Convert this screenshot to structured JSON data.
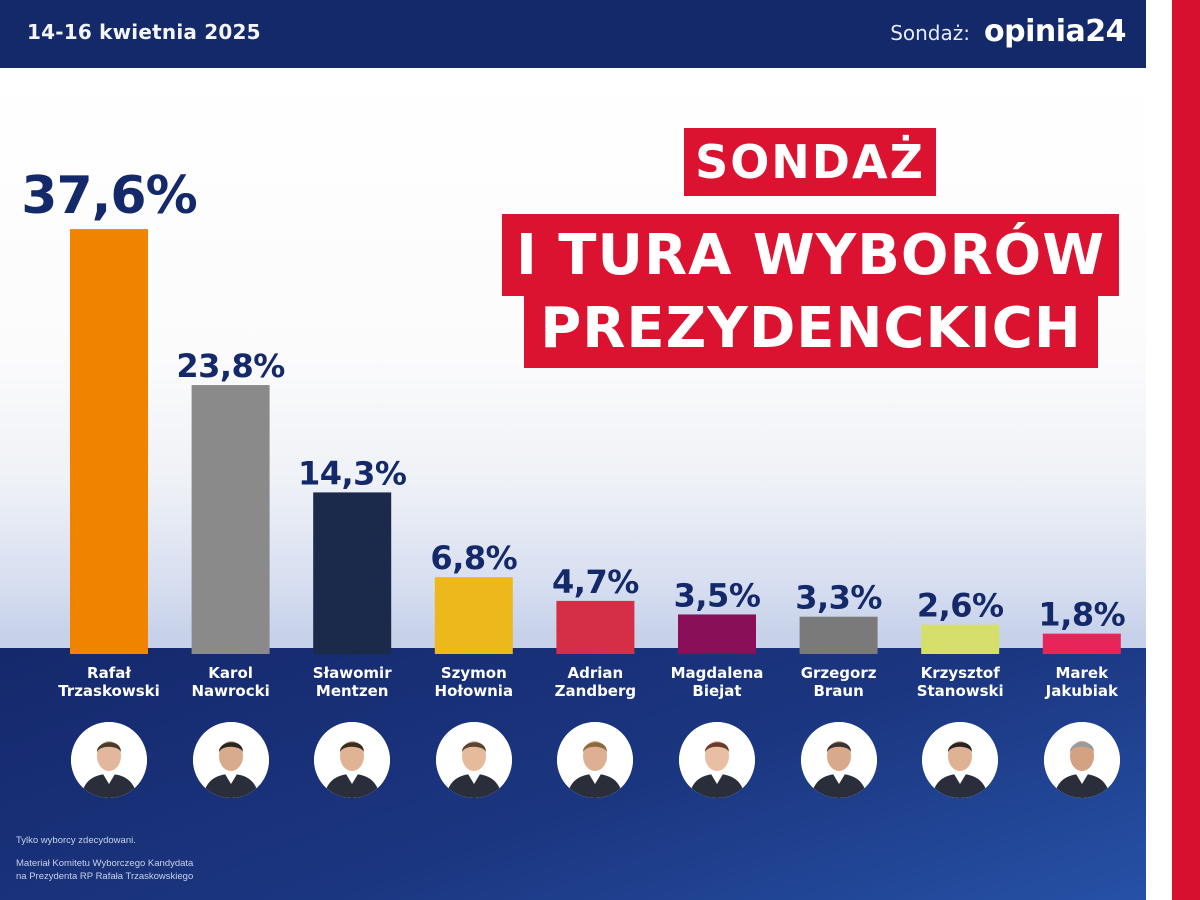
{
  "header": {
    "date": "14-16 kwietnia 2025",
    "source_label": "Sondaż:",
    "logo_text": "opinia24"
  },
  "title": {
    "line1": "SONDAŻ",
    "line2": "I TURA WYBORÓW",
    "line3": "PREZYDENCKICH"
  },
  "footnotes": {
    "note1": "Tylko wyborcy zdecydowani.",
    "note2_line1": "Materiał Komitetu Wyborczego Kandydata",
    "note2_line2": "na Prezydenta RP Rafała Trzaskowskiego"
  },
  "candidates": [
    {
      "first": "Rafał",
      "last": "Trzaskowski"
    },
    {
      "first": "Karol",
      "last": "Nawrocki"
    },
    {
      "first": "Sławomir",
      "last": "Mentzen"
    },
    {
      "first": "Szymon",
      "last": "Hołownia"
    },
    {
      "first": "Adrian",
      "last": "Zandberg"
    },
    {
      "first": "Magdalena",
      "last": "Biejat"
    },
    {
      "first": "Grzegorz",
      "last": "Braun"
    },
    {
      "first": "Krzysztof",
      "last": "Stanowski"
    },
    {
      "first": "Marek",
      "last": "Jakubiak"
    }
  ],
  "colors": {
    "header_bg": "#13296a",
    "title_red": "#db1330",
    "label_navy": "#13296a"
  },
  "chart_data": {
    "type": "bar",
    "categories": [
      "Rafał Trzaskowski",
      "Karol Nawrocki",
      "Sławomir Mentzen",
      "Szymon Hołownia",
      "Adrian Zandberg",
      "Magdalena Biejat",
      "Grzegorz Braun",
      "Krzysztof Stanowski",
      "Marek Jakubiak"
    ],
    "values": [
      37.6,
      23.8,
      14.3,
      6.8,
      4.7,
      3.5,
      3.3,
      2.6,
      1.8
    ],
    "value_labels": [
      "37,6%",
      "23,8%",
      "14,3%",
      "6,8%",
      "4,7%",
      "3,5%",
      "3,3%",
      "2,6%",
      "1,8%"
    ],
    "colors": [
      "#f08400",
      "#8a8a8a",
      "#1b2a4a",
      "#ecb81c",
      "#d42f46",
      "#8a0f59",
      "#7a7a7a",
      "#d6de6c",
      "#e7255a"
    ],
    "unit": "%",
    "grid": false,
    "legend": "none"
  }
}
